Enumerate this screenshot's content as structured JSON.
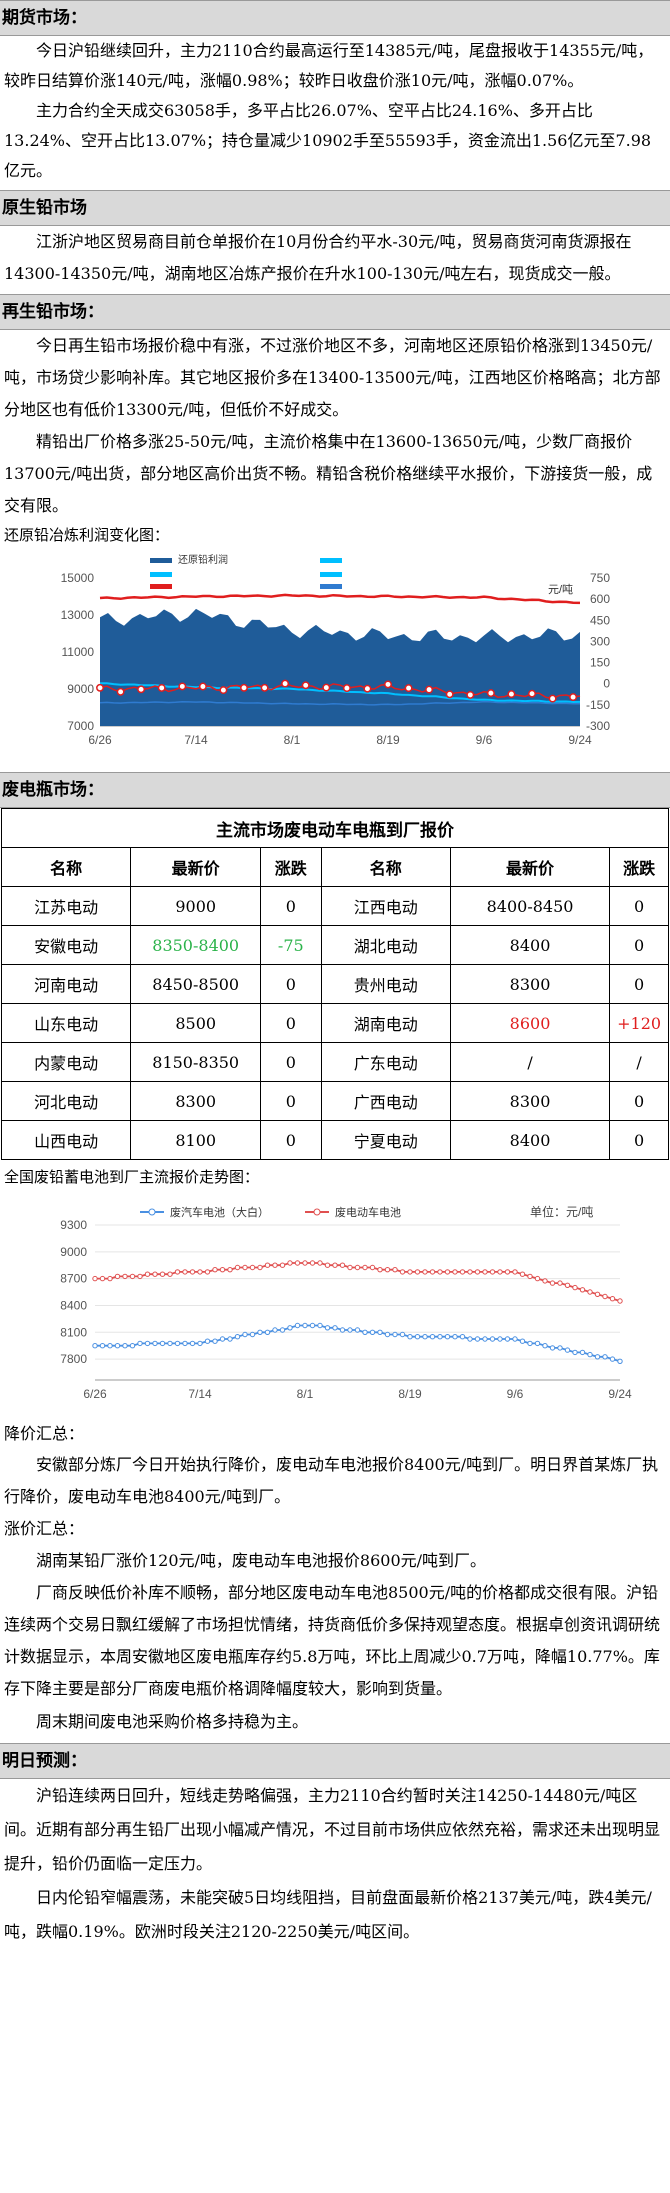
{
  "futures": {
    "title": "期货市场：",
    "paragraphs": [
      "今日沪铅继续回升，主力2110合约最高运行至14385元/吨，尾盘报收于14355元/吨，较昨日结算价涨140元/吨，涨幅0.98%；较昨日收盘价涨10元/吨，涨幅0.07%。",
      "主力合约全天成交63058手，多平占比26.07%、空平占比24.16%、多开占比13.24%、空开占比13.07%；持仓量减少10902手至55593手，资金流出1.56亿元至7.98亿元。"
    ]
  },
  "primary": {
    "title": "原生铅市场",
    "paragraphs": [
      "江浙沪地区贸易商目前仓单报价在10月份合约平水-30元/吨，贸易商货河南货源报在14300-14350元/吨，湖南地区冶炼产报价在升水100-130元/吨左右，现货成交一般。"
    ]
  },
  "secondary": {
    "title": "再生铅市场：",
    "paragraphs": [
      "今日再生铅市场报价稳中有涨，不过涨价地区不多，河南地区还原铅价格涨到13450元/吨，市场贷少影响补库。其它地区报价多在13400-13500元/吨，江西地区价格略高；北方部分地区也有低价13300元/吨，但低价不好成交。",
      "精铅出厂价格多涨25-50元/吨，主流价格集中在13600-13650元/吨，少数厂商报价13700元/吨出货，部分地区高价出货不畅。精铅含税价格继续平水报价，下游接货一般，成交有限。"
    ],
    "chart_caption": "还原铅冶炼利润变化图："
  },
  "chart1": {
    "legend": [
      "还原铅利润",
      "",
      "",
      "",
      "",
      ""
    ],
    "unit": "元/吨",
    "left_ticks": [
      "15000",
      "13000",
      "11000",
      "9000",
      "7000"
    ],
    "right_ticks": [
      "750",
      "600",
      "450",
      "300",
      "150",
      "0",
      "-150",
      "-300"
    ],
    "x_labels": [
      "6/26",
      "7/14",
      "8/1",
      "8/19",
      "9/6",
      "9/24"
    ],
    "colors": {
      "area": "#1f5c99",
      "red": "#e01e1e",
      "cyan": "#00bfff",
      "blue2": "#2f7bd0"
    }
  },
  "chart_data": [
    {
      "type": "area",
      "title": "",
      "x": [
        "6/26",
        "7/14",
        "8/1",
        "8/19",
        "9/6",
        "9/24"
      ],
      "ylim_left": [
        7000,
        15000
      ],
      "ylim_right": [
        -300,
        750
      ],
      "series": [
        {
          "name": "",
          "axis": "left",
          "values": [
            13900,
            14000,
            14050,
            14000,
            13950,
            13650
          ]
        },
        {
          "name": "还原铅利润",
          "axis": "right",
          "values": [
            450,
            500,
            380,
            340,
            330,
            350
          ]
        },
        {
          "name": "",
          "axis": "left",
          "values": [
            9300,
            9100,
            9000,
            8750,
            8400,
            8300
          ]
        },
        {
          "name": "",
          "axis": "left",
          "values": [
            9000,
            9050,
            9150,
            9100,
            8700,
            8600
          ]
        },
        {
          "name": "",
          "axis": "left",
          "values": [
            8250,
            8300,
            8200,
            8150,
            8300,
            8200
          ]
        }
      ]
    },
    {
      "type": "line",
      "title": "全国废铅蓄电池到厂主流报价走势图：",
      "x": [
        "6/26",
        "7/14",
        "8/1",
        "8/19",
        "9/6",
        "9/24"
      ],
      "ylim": [
        7700,
        9300
      ],
      "series": [
        {
          "name": "废汽车电池（大白）",
          "values": [
            7950,
            7980,
            8180,
            8060,
            8020,
            7780
          ]
        },
        {
          "name": "废电动车电池",
          "values": [
            8700,
            8780,
            8880,
            8780,
            8780,
            8450
          ]
        }
      ]
    }
  ],
  "scrap": {
    "title": "废电瓶市场：",
    "table_caption": "主流市场废电动车电瓶到厂报价",
    "headers": [
      "名称",
      "最新价",
      "涨跌",
      "名称",
      "最新价",
      "涨跌"
    ],
    "rows": [
      [
        {
          "t": "江苏电动"
        },
        {
          "t": "9000"
        },
        {
          "t": "0"
        },
        {
          "t": "江西电动"
        },
        {
          "t": "8400-8450"
        },
        {
          "t": "0"
        }
      ],
      [
        {
          "t": "安徽电动"
        },
        {
          "t": "8350-8400",
          "c": "green"
        },
        {
          "t": "-75",
          "c": "green"
        },
        {
          "t": "湖北电动"
        },
        {
          "t": "8400"
        },
        {
          "t": "0"
        }
      ],
      [
        {
          "t": "河南电动"
        },
        {
          "t": "8450-8500"
        },
        {
          "t": "0"
        },
        {
          "t": "贵州电动"
        },
        {
          "t": "8300"
        },
        {
          "t": "0"
        }
      ],
      [
        {
          "t": "山东电动"
        },
        {
          "t": "8500"
        },
        {
          "t": "0"
        },
        {
          "t": "湖南电动"
        },
        {
          "t": "8600",
          "c": "red"
        },
        {
          "t": "+120",
          "c": "red"
        }
      ],
      [
        {
          "t": "内蒙电动"
        },
        {
          "t": "8150-8350"
        },
        {
          "t": "0"
        },
        {
          "t": "广东电动"
        },
        {
          "t": "/"
        },
        {
          "t": "/"
        }
      ],
      [
        {
          "t": "河北电动"
        },
        {
          "t": "8300"
        },
        {
          "t": "0"
        },
        {
          "t": "广西电动"
        },
        {
          "t": "8300"
        },
        {
          "t": "0"
        }
      ],
      [
        {
          "t": "山西电动"
        },
        {
          "t": "8100"
        },
        {
          "t": "0"
        },
        {
          "t": "宁夏电动"
        },
        {
          "t": "8400"
        },
        {
          "t": "0"
        }
      ]
    ],
    "chart_caption": "全国废铅蓄电池到厂主流报价走势图：",
    "chart2_legend": [
      "废汽车电池（大白）",
      "废电动车电池"
    ],
    "chart2_unit": "单位：元/吨",
    "chart2_ticks": [
      "9300",
      "9000",
      "8700",
      "8400",
      "8100",
      "7800"
    ],
    "chart2_colors": {
      "a": "#4a90e2",
      "b": "#e05050"
    },
    "down_title": "降价汇总：",
    "down_text": "安徽部分炼厂今日开始执行降价，废电动车电池报价8400元/吨到厂。明日界首某炼厂执行降价，废电动车电池8400元/吨到厂。",
    "up_title": "涨价汇总：",
    "up_text": "湖南某铅厂涨价120元/吨，废电动车电池报价8600元/吨到厂。",
    "paragraphs": [
      "厂商反映低价补库不顺畅，部分地区废电动车电池8500元/吨的价格都成交很有限。沪铅连续两个交易日飘红缓解了市场担忧情绪，持货商低价多保持观望态度。根据卓创资讯调研统计数据显示，本周安徽地区废电瓶库存约5.8万吨，环比上周减少0.7万吨，降幅10.77%。库存下降主要是部分厂商废电瓶价格调降幅度较大，影响到货量。",
      "周末期间废电池采购价格多持稳为主。"
    ]
  },
  "forecast": {
    "title": "明日预测：",
    "paragraphs": [
      "沪铅连续两日回升，短线走势略偏强，主力2110合约暂时关注14250-14480元/吨区间。近期有部分再生铅厂出现小幅减产情况，不过目前市场供应依然充裕，需求还未出现明显提升，铅价仍面临一定压力。",
      "日内伦铅窄幅震荡，未能突破5日均线阻挡，目前盘面最新价格2137美元/吨，跌4美元/吨，跌幅0.19%。欧洲时段关注2120-2250美元/吨区间。"
    ]
  }
}
